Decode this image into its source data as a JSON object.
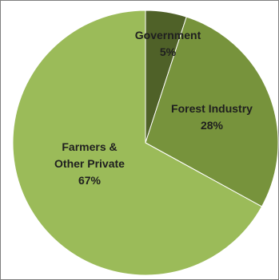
{
  "chart_data": {
    "type": "pie",
    "title": "",
    "slices": [
      {
        "label_lines": [
          "Government",
          "5%"
        ],
        "value": 5,
        "color": "#4f6128"
      },
      {
        "label_lines": [
          "Forest Industry",
          "28%"
        ],
        "value": 28,
        "color": "#77933c"
      },
      {
        "label_lines": [
          "Farmers &",
          "Other Private",
          "67%"
        ],
        "value": 67,
        "color": "#9bbb59"
      }
    ],
    "start": "12 o'clock",
    "direction": "clockwise",
    "label_color": "#1f1f1f",
    "legend": "none"
  }
}
